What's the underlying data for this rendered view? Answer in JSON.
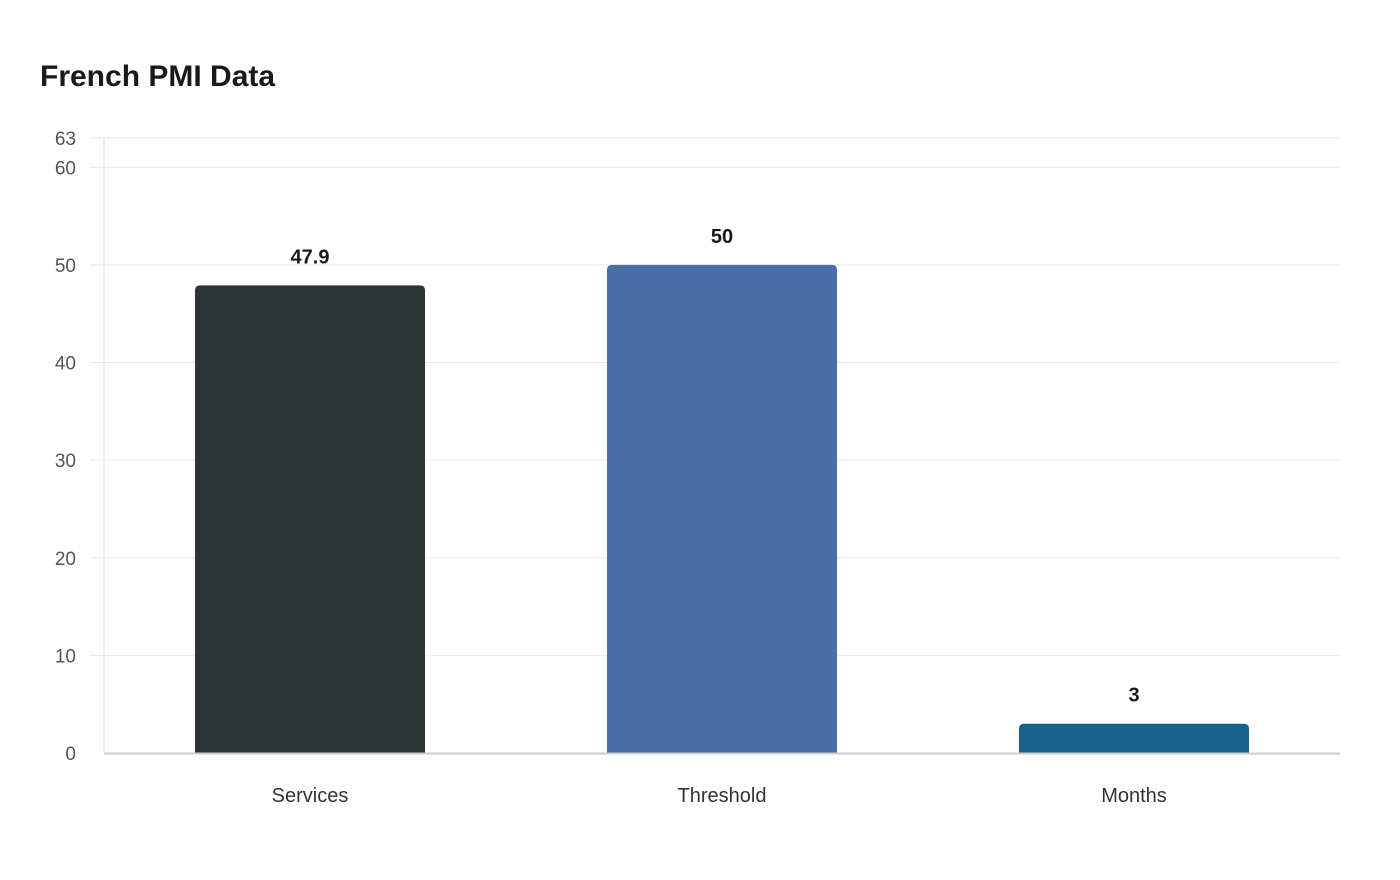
{
  "chart_data": {
    "type": "bar",
    "title": "French PMI Data",
    "xlabel": "",
    "ylabel": "",
    "categories": [
      "Services",
      "Threshold",
      "Months"
    ],
    "values": [
      47.9,
      50,
      3
    ],
    "data_labels": [
      "47.9",
      "50",
      "3"
    ],
    "colors": [
      "#2d3436",
      "#4a6fa5",
      "#17618a"
    ],
    "ylim": [
      0,
      63
    ],
    "yticks": [
      0,
      10,
      20,
      30,
      40,
      50,
      60,
      63
    ],
    "grid": true,
    "legend": "none"
  }
}
